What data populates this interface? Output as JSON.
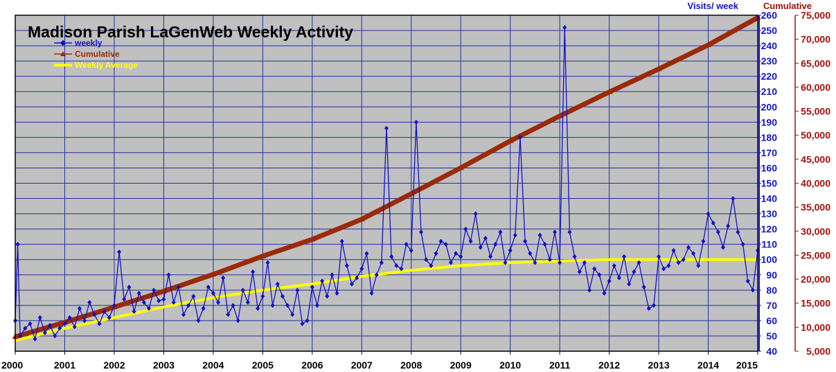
{
  "chart_data": {
    "type": "line",
    "title": "Madison Parish LaGenWeb Weekly Activity",
    "xlabel": "",
    "ylabel_left": "",
    "ylabel_right1": "Visits/ week",
    "ylabel_right2": "Cumulative",
    "x_ticks": [
      "2000",
      "2001",
      "2002",
      "2003",
      "2004",
      "2005",
      "2006",
      "2007",
      "2008",
      "2009",
      "2010",
      "2011",
      "2012",
      "2013",
      "2014",
      "2015"
    ],
    "xlim": [
      2000,
      2015
    ],
    "ylim_weekly": [
      40,
      260
    ],
    "weekly_ticks": [
      "40",
      "50",
      "60",
      "70",
      "80",
      "90",
      "100",
      "110",
      "120",
      "130",
      "140",
      "150",
      "160",
      "170",
      "180",
      "190",
      "200",
      "210",
      "220",
      "230",
      "240",
      "250",
      "260"
    ],
    "ylim_cumulative": [
      5000,
      75000
    ],
    "cumulative_ticks": [
      "5,000",
      "10,000",
      "15,000",
      "20,000",
      "25,000",
      "30,000",
      "35,000",
      "40,000",
      "45,000",
      "50,000",
      "55,000",
      "60,000",
      "65,000",
      "70,000",
      "75,000"
    ],
    "grid": true,
    "legend_position": "top-left",
    "colors": {
      "plot_bg": "#c0c0c0",
      "grid": "#1f2f9f",
      "weekly": "#1010c8",
      "cumulative": "#9a2a0a",
      "average": "#ffff00",
      "weekly_axis": "#1515c0",
      "cumulative_axis": "#a01010",
      "x_axis": "#000000"
    },
    "series": [
      {
        "name": "weekly",
        "axis": "weekly",
        "x": [
          2000.0,
          2000.05,
          2000.1,
          2000.2,
          2000.3,
          2000.4,
          2000.5,
          2000.6,
          2000.7,
          2000.8,
          2000.9,
          2001.0,
          2001.1,
          2001.2,
          2001.3,
          2001.4,
          2001.5,
          2001.6,
          2001.7,
          2001.8,
          2001.9,
          2002.0,
          2002.1,
          2002.2,
          2002.3,
          2002.4,
          2002.5,
          2002.6,
          2002.7,
          2002.8,
          2002.9,
          2003.0,
          2003.1,
          2003.2,
          2003.3,
          2003.4,
          2003.5,
          2003.6,
          2003.7,
          2003.8,
          2003.9,
          2004.0,
          2004.1,
          2004.2,
          2004.3,
          2004.4,
          2004.5,
          2004.6,
          2004.7,
          2004.8,
          2004.9,
          2005.0,
          2005.1,
          2005.2,
          2005.3,
          2005.4,
          2005.5,
          2005.6,
          2005.7,
          2005.8,
          2005.9,
          2006.0,
          2006.1,
          2006.2,
          2006.3,
          2006.4,
          2006.5,
          2006.6,
          2006.7,
          2006.8,
          2006.9,
          2007.0,
          2007.1,
          2007.2,
          2007.3,
          2007.4,
          2007.5,
          2007.6,
          2007.7,
          2007.8,
          2007.9,
          2008.0,
          2008.1,
          2008.2,
          2008.3,
          2008.4,
          2008.5,
          2008.6,
          2008.7,
          2008.8,
          2008.9,
          2009.0,
          2009.1,
          2009.2,
          2009.3,
          2009.4,
          2009.5,
          2009.6,
          2009.7,
          2009.8,
          2009.9,
          2010.0,
          2010.1,
          2010.2,
          2010.3,
          2010.4,
          2010.5,
          2010.6,
          2010.7,
          2010.8,
          2010.9,
          2011.0,
          2011.1,
          2011.2,
          2011.3,
          2011.4,
          2011.5,
          2011.6,
          2011.7,
          2011.8,
          2011.9,
          2012.0,
          2012.1,
          2012.2,
          2012.3,
          2012.4,
          2012.5,
          2012.6,
          2012.7,
          2012.8,
          2012.9,
          2013.0,
          2013.1,
          2013.2,
          2013.3,
          2013.4,
          2013.5,
          2013.6,
          2013.7,
          2013.8,
          2013.9,
          2014.0,
          2014.1,
          2014.2,
          2014.3,
          2014.4,
          2014.5,
          2014.6,
          2014.7,
          2014.8,
          2014.9,
          2015.0
        ],
        "values": [
          60,
          110,
          50,
          55,
          58,
          48,
          62,
          52,
          57,
          50,
          55,
          58,
          62,
          56,
          68,
          60,
          72,
          64,
          58,
          66,
          62,
          70,
          105,
          74,
          82,
          66,
          78,
          72,
          68,
          80,
          73,
          74,
          90,
          72,
          82,
          64,
          70,
          76,
          60,
          68,
          82,
          78,
          72,
          88,
          64,
          70,
          60,
          80,
          72,
          92,
          68,
          76,
          98,
          70,
          84,
          76,
          70,
          64,
          80,
          58,
          60,
          82,
          70,
          86,
          76,
          90,
          78,
          112,
          96,
          84,
          88,
          94,
          104,
          78,
          90,
          98,
          186,
          102,
          96,
          94,
          110,
          106,
          190,
          118,
          100,
          96,
          104,
          112,
          110,
          98,
          104,
          102,
          120,
          112,
          130,
          108,
          114,
          102,
          110,
          118,
          98,
          106,
          116,
          180,
          112,
          104,
          98,
          116,
          110,
          100,
          118,
          98,
          252,
          118,
          102,
          92,
          98,
          80,
          94,
          90,
          78,
          86,
          96,
          88,
          102,
          84,
          92,
          98,
          82,
          68,
          70,
          102,
          94,
          96,
          106,
          98,
          100,
          108,
          104,
          96,
          112,
          130,
          124,
          118,
          108,
          122,
          140,
          118,
          110,
          86,
          80,
          106
        ]
      },
      {
        "name": "Cumulative",
        "axis": "cumulative",
        "x": [
          2000,
          2001,
          2002,
          2003,
          2004,
          2005,
          2006,
          2007,
          2008,
          2009,
          2010,
          2011,
          2012,
          2013,
          2014,
          2015
        ],
        "values": [
          8000,
          11000,
          14200,
          17500,
          21000,
          24800,
          28300,
          32500,
          37800,
          43200,
          48800,
          54000,
          59000,
          63800,
          68800,
          74500
        ]
      },
      {
        "name": "Weekly Average",
        "axis": "weekly",
        "x": [
          2000,
          2001,
          2002,
          2003,
          2004,
          2005,
          2006,
          2007,
          2008,
          2009,
          2010,
          2011,
          2012,
          2013,
          2014,
          2015
        ],
        "values": [
          47,
          55,
          62,
          69,
          75,
          80,
          84,
          89,
          93,
          96,
          98,
          99,
          100,
          100,
          100,
          100
        ]
      }
    ]
  }
}
